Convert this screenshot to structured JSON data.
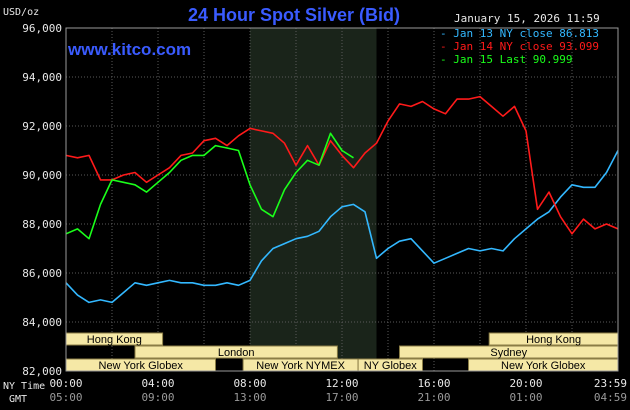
{
  "chart_data": {
    "type": "line",
    "title": "24 Hour Spot Silver (Bid)",
    "site": "www.kitco.com",
    "timestamp": "January 15, 2026 11:59",
    "ylabel": "USD/oz",
    "ylim": [
      82000,
      96000
    ],
    "yticks": [
      "96,000",
      "94,000",
      "92,000",
      "90,000",
      "88,000",
      "86,000",
      "84,000",
      "82,000"
    ],
    "ytick_values": [
      96000,
      94000,
      92000,
      90000,
      88000,
      86000,
      84000,
      82000
    ],
    "xlim": [
      0,
      24
    ],
    "xticks_ny": [
      "00:00",
      "04:00",
      "08:00",
      "12:00",
      "16:00",
      "20:00",
      "23:59"
    ],
    "xticks_gmt": [
      "05:00",
      "09:00",
      "13:00",
      "17:00",
      "21:00",
      "01:00",
      "04:59"
    ],
    "xtick_hours": [
      0,
      4,
      8,
      12,
      16,
      20,
      24
    ],
    "xrow_labels": {
      "ny": "NY Time",
      "gmt": "GMT"
    },
    "grid": true,
    "legend_position": "top-right",
    "highlight_band": [
      8,
      13.5
    ],
    "series": [
      {
        "name": "Jan 13 NY close 86.813",
        "color": "#33b8ff",
        "x": [
          0,
          0.5,
          1,
          1.5,
          2,
          2.5,
          3,
          3.5,
          4,
          4.5,
          5,
          5.5,
          6,
          6.5,
          7,
          7.5,
          8,
          8.5,
          9,
          9.5,
          10,
          10.5,
          11,
          11.5,
          12,
          12.5,
          13,
          13.5,
          14,
          14.5,
          15,
          15.5,
          16,
          16.5,
          17,
          17.5,
          18,
          18.5,
          19,
          19.5,
          20,
          20.5,
          21,
          21.5,
          22,
          22.5,
          23,
          23.5,
          24
        ],
        "y": [
          85600,
          85100,
          84800,
          84900,
          84800,
          85200,
          85600,
          85500,
          85600,
          85700,
          85600,
          85600,
          85500,
          85500,
          85600,
          85500,
          85700,
          86500,
          87000,
          87200,
          87400,
          87500,
          87700,
          88300,
          88700,
          88800,
          88500,
          86600,
          87000,
          87300,
          87400,
          86900,
          86400,
          86600,
          86800,
          87000,
          86900,
          87000,
          86900,
          87400,
          87800,
          88200,
          88500,
          89100,
          89600,
          89500,
          89500,
          90100,
          91000
        ]
      },
      {
        "name": "Jan 14 NY close 93.099",
        "color": "#ff1a1a",
        "x": [
          0,
          0.5,
          1,
          1.5,
          2,
          2.5,
          3,
          3.5,
          4,
          4.5,
          5,
          5.5,
          6,
          6.5,
          7,
          7.5,
          8,
          8.5,
          9,
          9.5,
          10,
          10.5,
          11,
          11.5,
          12,
          12.5,
          13,
          13.5,
          14,
          14.5,
          15,
          15.5,
          16,
          16.5,
          17,
          17.5,
          18,
          18.5,
          19,
          19.5,
          20,
          20.5,
          21,
          21.5,
          22,
          22.5,
          23,
          23.5,
          24
        ],
        "y": [
          90800,
          90700,
          90800,
          89800,
          89800,
          90000,
          90100,
          89700,
          90000,
          90300,
          90800,
          90900,
          91400,
          91500,
          91200,
          91600,
          91900,
          91800,
          91700,
          91300,
          90400,
          91200,
          90400,
          91400,
          90800,
          90300,
          90900,
          91300,
          92200,
          92900,
          92800,
          93000,
          92700,
          92500,
          93100,
          93100,
          93200,
          92800,
          92400,
          92800,
          91800,
          88600,
          89300,
          88300,
          87600,
          88200,
          87800,
          88000,
          87800
        ]
      },
      {
        "name": "Jan 15 Last 90.999",
        "color": "#1aff1a",
        "x": [
          0,
          0.5,
          1,
          1.5,
          2,
          2.5,
          3,
          3.5,
          4,
          4.5,
          5,
          5.5,
          6,
          6.5,
          7,
          7.5,
          8,
          8.5,
          9,
          9.5,
          10,
          10.5,
          11,
          11.5,
          12,
          12.5
        ],
        "y": [
          87600,
          87800,
          87400,
          88800,
          89800,
          89700,
          89600,
          89300,
          89700,
          90100,
          90600,
          90800,
          90800,
          91200,
          91100,
          91000,
          89600,
          88600,
          88300,
          89400,
          90100,
          90600,
          90400,
          91700,
          91000,
          90700
        ]
      }
    ],
    "sessions": [
      {
        "label": "Hong Kong",
        "start": 0,
        "end": 4.2,
        "row": 0
      },
      {
        "label": "Hong Kong",
        "start": 18.4,
        "end": 24,
        "row": 0
      },
      {
        "label": "London",
        "start": 3.0,
        "end": 11.8,
        "row": 1
      },
      {
        "label": "Sydney",
        "start": 14.5,
        "end": 24,
        "row": 1
      },
      {
        "label": "New York Globex",
        "start": 0,
        "end": 6.5,
        "row": 2
      },
      {
        "label": "New York NYMEX",
        "start": 7.7,
        "end": 12.7,
        "row": 2
      },
      {
        "label": "NY Globex",
        "start": 12.7,
        "end": 15.5,
        "row": 2
      },
      {
        "label": "New York Globex",
        "start": 17.5,
        "end": 24,
        "row": 2
      }
    ]
  }
}
